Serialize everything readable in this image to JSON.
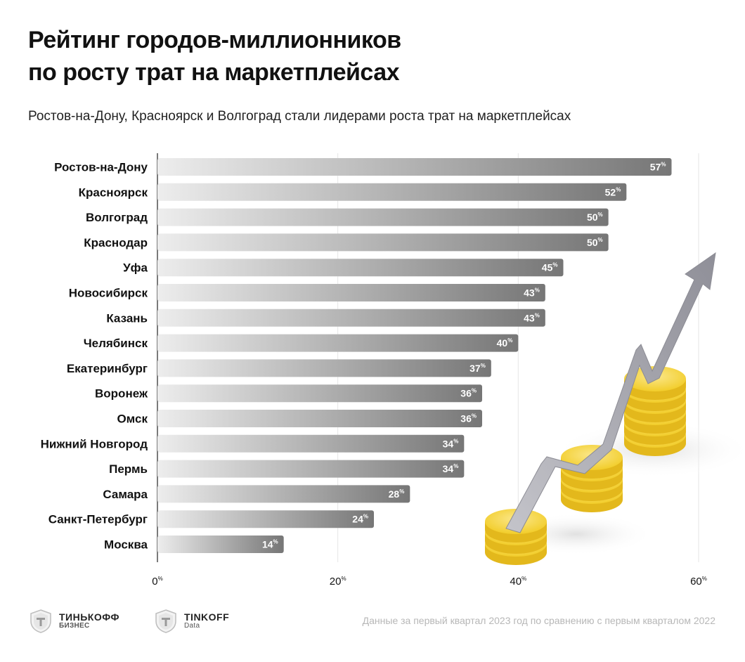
{
  "chart_data": {
    "type": "bar",
    "orientation": "horizontal",
    "title": "Рейтинг городов-миллионников по росту трат на маркетплейсах",
    "subtitle": "Ростов-на-Дону, Красноярск и Волгоград стали лидерами роста трат на маркетплейсах",
    "categories": [
      "Ростов-на-Дону",
      "Красноярск",
      "Волгоград",
      "Краснодар",
      "Уфа",
      "Новосибирск",
      "Казань",
      "Челябинск",
      "Екатеринбург",
      "Воронеж",
      "Омск",
      "Нижний Новгород",
      "Пермь",
      "Самара",
      "Санкт-Петербург",
      "Москва"
    ],
    "values": [
      57,
      52,
      50,
      50,
      45,
      43,
      43,
      40,
      37,
      36,
      36,
      34,
      34,
      28,
      24,
      14
    ],
    "value_suffix": "%",
    "xlim": [
      0,
      60
    ],
    "xticks": [
      0,
      20,
      40,
      60
    ],
    "xlabel": "",
    "ylabel": "",
    "grid": true,
    "bar_color_start": "#ececec",
    "bar_color_end": "#7a7a7a"
  },
  "title_lines": [
    "Рейтинг городов-миллионников",
    "по росту трат на маркетплейсах"
  ],
  "footer": {
    "logo1": {
      "main": "ТИНЬКОФФ",
      "sub": "БИЗНЕС"
    },
    "logo2": {
      "main": "TINKOFF",
      "sub": "Data"
    },
    "note": "Данные за первый квартал 2023 год по сравнению с первым кварталом 2022"
  },
  "colors": {
    "coin": "#f5d33a",
    "coin_edge": "#e3b81c",
    "arrow": "#a9a9b0",
    "grid": "#e6e6e6",
    "axis": "#222222"
  }
}
